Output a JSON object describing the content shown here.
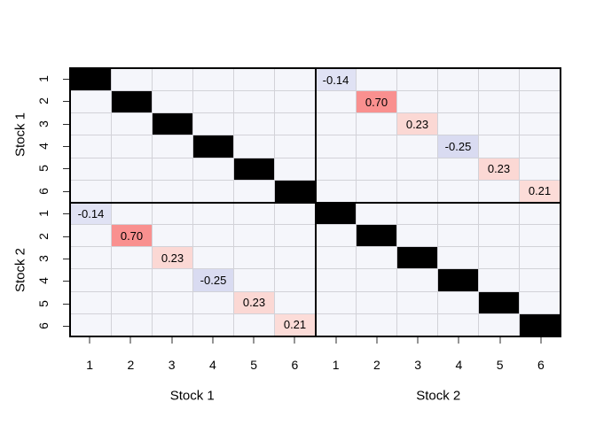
{
  "figure": {
    "background": "#ffffff"
  },
  "plot": {
    "cell_bg": "#f5f6fb",
    "grid_color": "#d2d2d8",
    "border_color": "#000000",
    "diagonal_color": "#000000",
    "tick_color": "#2b2b2b"
  },
  "axes": {
    "left": {
      "tick_labels": [
        "1",
        "2",
        "3",
        "4",
        "5",
        "6",
        "1",
        "2",
        "3",
        "4",
        "5",
        "6"
      ],
      "groups": [
        {
          "label": "Stock 1"
        },
        {
          "label": "Stock 2"
        }
      ]
    },
    "bottom": {
      "tick_labels": [
        "1",
        "2",
        "3",
        "4",
        "5",
        "6",
        "1",
        "2",
        "3",
        "4",
        "5",
        "6"
      ],
      "groups": [
        {
          "label": "Stock 1"
        },
        {
          "label": "Stock 2"
        }
      ]
    }
  },
  "chart_data": {
    "type": "heatmap",
    "title": "",
    "description": "Block correlation matrix image plot for two groups of six variables; black cells mark the diagonal (correlation 1), colored cells mark cross-group correlations between matching variables.",
    "groups": [
      "Stock 1",
      "Stock 2"
    ],
    "variables_per_group": 6,
    "rows": 12,
    "cols": 12,
    "x_tick_labels": [
      "1",
      "2",
      "3",
      "4",
      "5",
      "6",
      "1",
      "2",
      "3",
      "4",
      "5",
      "6"
    ],
    "y_tick_labels": [
      "1",
      "2",
      "3",
      "4",
      "5",
      "6",
      "1",
      "2",
      "3",
      "4",
      "5",
      "6"
    ],
    "xlabel_groups": [
      "Stock 1",
      "Stock 2"
    ],
    "ylabel_groups": [
      "Stock 1",
      "Stock 2"
    ],
    "grid": true,
    "legend": "none",
    "diagonal_value": 1,
    "cross_block_diagonal": [
      {
        "pair": "1",
        "value": -0.14,
        "label": "-0.14",
        "color": "#e0e2f4"
      },
      {
        "pair": "2",
        "value": 0.7,
        "label": "0.70",
        "color": "#f9908f"
      },
      {
        "pair": "3",
        "value": 0.23,
        "label": "0.23",
        "color": "#fbd8d4"
      },
      {
        "pair": "4",
        "value": -0.25,
        "label": "-0.25",
        "color": "#d9dbf1"
      },
      {
        "pair": "5",
        "value": 0.23,
        "label": "0.23",
        "color": "#fbd8d4"
      },
      {
        "pair": "6",
        "value": 0.21,
        "label": "0.21",
        "color": "#fcdcd8"
      }
    ]
  }
}
